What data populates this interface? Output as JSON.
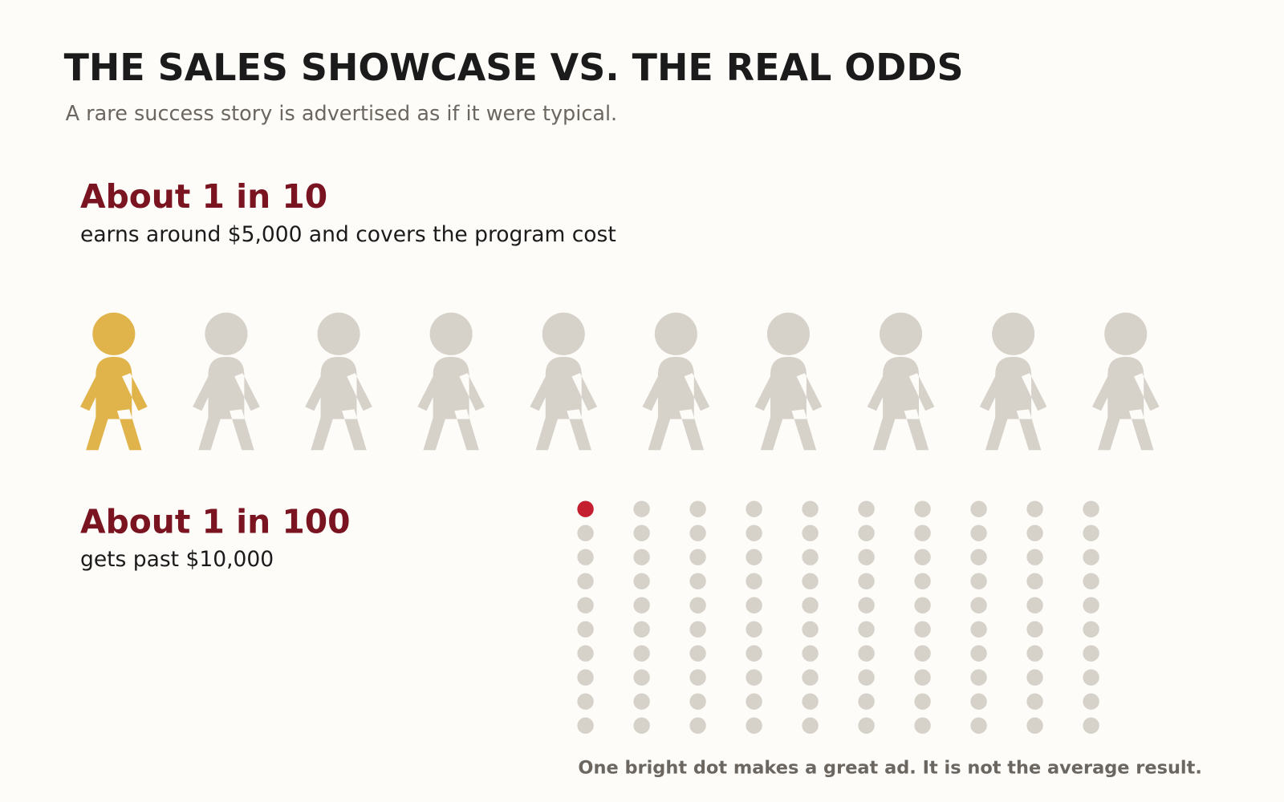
{
  "title": "THE SALES SHOWCASE VS. THE REAL ODDS",
  "subtitle": "A rare success story is advertised as if it were typical.",
  "panels": [
    {
      "type": "pictogram",
      "headline": "About 1 in 10",
      "description": "earns around $5,000 and covers the program cost",
      "total": 10,
      "highlighted": 1,
      "highlight_color": "#e0b44a",
      "base_color": "#d6d1c9"
    },
    {
      "type": "waffle",
      "headline": "About 1 in 100",
      "description": "gets past $10,000",
      "total": 100,
      "highlighted": 1,
      "highlight_color": "#c41e30",
      "base_color": "#d6d1c9"
    }
  ],
  "footnote": "One bright dot makes a great ad. It is not the average result."
}
